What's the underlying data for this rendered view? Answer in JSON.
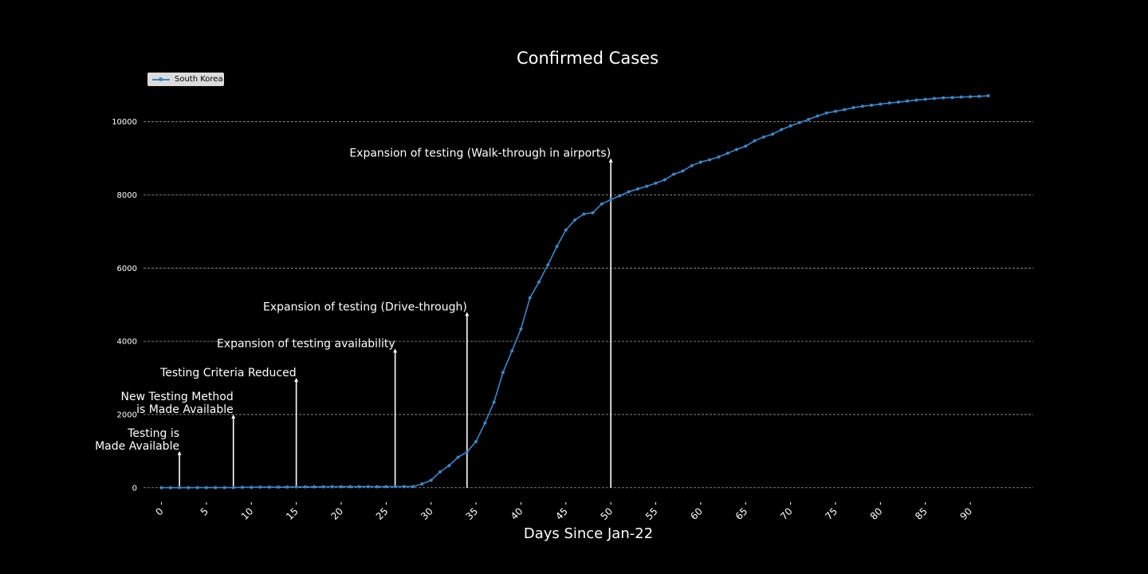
{
  "chart_data": {
    "type": "line",
    "title": "Confirmed Cases",
    "xlabel": "Days Since Jan-22",
    "ylabel": "",
    "xlim": [
      -2,
      97
    ],
    "ylim": [
      -550,
      11300
    ],
    "x_ticks": [
      0,
      5,
      10,
      15,
      20,
      25,
      30,
      35,
      40,
      45,
      50,
      55,
      60,
      65,
      70,
      75,
      80,
      85,
      90
    ],
    "y_ticks": [
      0,
      2000,
      4000,
      6000,
      8000,
      10000
    ],
    "grid": "horizontal dashed",
    "legend_position": "top-left",
    "series": [
      {
        "name": "South Korea",
        "color": "#3a87c8",
        "x": [
          0,
          1,
          2,
          3,
          4,
          5,
          6,
          7,
          8,
          9,
          10,
          11,
          12,
          13,
          14,
          15,
          16,
          17,
          18,
          19,
          20,
          21,
          22,
          23,
          24,
          25,
          26,
          27,
          28,
          29,
          30,
          31,
          32,
          33,
          34,
          35,
          36,
          37,
          38,
          39,
          40,
          41,
          42,
          43,
          44,
          45,
          46,
          47,
          48,
          49,
          50,
          51,
          52,
          53,
          54,
          55,
          56,
          57,
          58,
          59,
          60,
          61,
          62,
          63,
          64,
          65,
          66,
          67,
          68,
          69,
          70,
          71,
          72,
          73,
          74,
          75,
          76,
          77,
          78,
          79,
          80,
          81,
          82,
          83,
          84,
          85,
          86,
          87,
          88,
          89,
          90,
          91,
          92
        ],
        "values": [
          1,
          1,
          2,
          2,
          3,
          4,
          4,
          4,
          4,
          11,
          12,
          15,
          15,
          16,
          19,
          23,
          24,
          24,
          25,
          27,
          28,
          28,
          28,
          28,
          28,
          29,
          30,
          31,
          31,
          104,
          204,
          433,
          602,
          833,
          977,
          1261,
          1766,
          2337,
          3150,
          3736,
          4335,
          5186,
          5621,
          6088,
          6593,
          7041,
          7314,
          7478,
          7513,
          7755,
          7869,
          7979,
          8086,
          8162,
          8236,
          8320,
          8413,
          8565,
          8652,
          8799,
          8897,
          8961,
          9037,
          9137,
          9241,
          9332,
          9478,
          9583,
          9661,
          9786,
          9887,
          9976,
          10062,
          10156,
          10237,
          10284,
          10331,
          10384,
          10423,
          10450,
          10480,
          10512,
          10537,
          10564,
          10591,
          10613,
          10635,
          10653,
          10661,
          10674,
          10683,
          10694,
          10708
        ]
      }
    ],
    "annotations": [
      {
        "id": "testing-available",
        "lines": [
          "Testing is",
          "Made Available"
        ],
        "x": 2,
        "y_top": 1000
      },
      {
        "id": "new-method",
        "lines": [
          "New Testing Method",
          "is Made Available"
        ],
        "x": 8,
        "y_top": 2000
      },
      {
        "id": "criteria-reduced",
        "lines": [
          "Testing Criteria Reduced"
        ],
        "x": 15,
        "y_top": 3000
      },
      {
        "id": "availability",
        "lines": [
          "Expansion of testing availability"
        ],
        "x": 26,
        "y_top": 3800
      },
      {
        "id": "drive-through",
        "lines": [
          "Expansion of testing (Drive-through)"
        ],
        "x": 34,
        "y_top": 4800
      },
      {
        "id": "walk-through",
        "lines": [
          "Expansion of testing (Walk-through in airports)"
        ],
        "x": 50,
        "y_top": 9000
      }
    ]
  }
}
